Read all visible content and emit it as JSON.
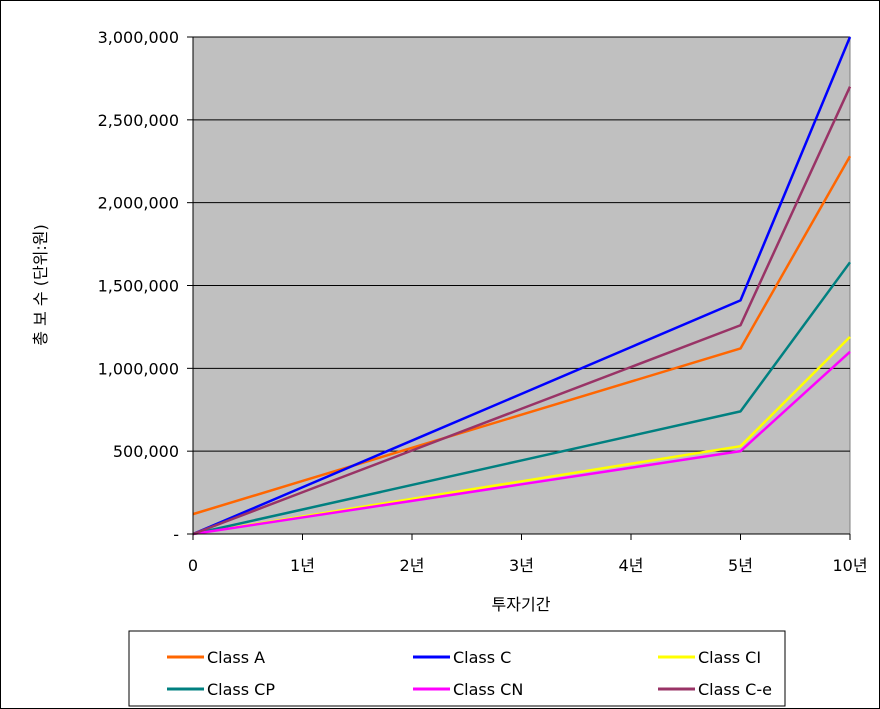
{
  "chart_data": {
    "type": "line",
    "categories": [
      "0",
      "1년",
      "2년",
      "3년",
      "4년",
      "5년",
      "10년"
    ],
    "xlabel": "투자기간",
    "ylabel": "총 보 수 (단위:원)",
    "ylim": [
      0,
      3000000
    ],
    "yticks": [
      {
        "value": 0,
        "label": "-"
      },
      {
        "value": 500000,
        "label": "500,000"
      },
      {
        "value": 1000000,
        "label": "1,000,000"
      },
      {
        "value": 1500000,
        "label": "1,500,000"
      },
      {
        "value": 2000000,
        "label": "2,000,000"
      },
      {
        "value": 2500000,
        "label": "2,500,000"
      },
      {
        "value": 3000000,
        "label": "3,000,000"
      }
    ],
    "grid": true,
    "plot_background": "#c0c0c0",
    "legend_position": "bottom",
    "series": [
      {
        "name": "Class A",
        "color": "#ff6600",
        "values": [
          120000,
          320000,
          520000,
          720000,
          920000,
          1120000,
          2280000
        ]
      },
      {
        "name": "Class C",
        "color": "#0000ff",
        "values": [
          0,
          282000,
          564000,
          846000,
          1128000,
          1410000,
          3000000
        ]
      },
      {
        "name": "Class CI",
        "color": "#ffff00",
        "values": [
          0,
          106000,
          212000,
          318000,
          424000,
          530000,
          1190000
        ]
      },
      {
        "name": "Class CP",
        "color": "#008080",
        "values": [
          0,
          148000,
          296000,
          444000,
          592000,
          740000,
          1640000
        ]
      },
      {
        "name": "Class CN",
        "color": "#ff00ff",
        "values": [
          0,
          100000,
          200000,
          300000,
          400000,
          500000,
          1100000
        ]
      },
      {
        "name": "Class C-e",
        "color": "#993366",
        "values": [
          0,
          252000,
          504000,
          756000,
          1008000,
          1260000,
          2700000
        ]
      }
    ]
  }
}
